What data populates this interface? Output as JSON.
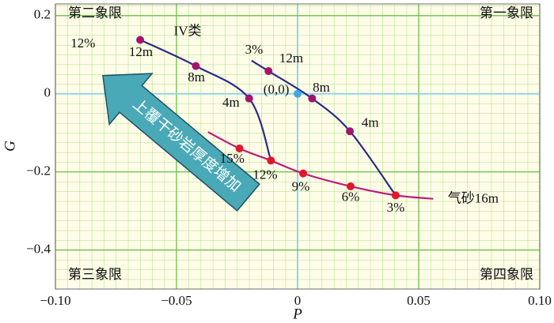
{
  "chart_data": {
    "type": "line",
    "xlabel": "P",
    "ylabel": "G",
    "xlim": [
      -0.1,
      0.1
    ],
    "ylim": [
      -0.5,
      0.23
    ],
    "xticks": [
      {
        "value": -0.1,
        "label": "−0.10"
      },
      {
        "value": -0.05,
        "label": "−0.05"
      },
      0,
      {
        "value": 0.05,
        "label": "0.05"
      },
      {
        "value": 0.1,
        "label": "0.10"
      }
    ],
    "yticks": [
      {
        "value": 0.2,
        "label": "0.2"
      },
      0,
      {
        "value": -0.2,
        "label": "−0.2"
      },
      {
        "value": -0.4,
        "label": "−0.4"
      }
    ],
    "grid": true,
    "series": [
      {
        "color": "#2b2a8a",
        "x": [
          -0.065,
          -0.042,
          -0.02,
          -0.011
        ],
        "y": [
          0.138,
          0.071,
          -0.012,
          -0.171
        ]
      },
      {
        "color": "#2b2a8a",
        "x": [
          -0.019,
          -0.012,
          0.006,
          0.0216,
          0.0405
        ],
        "y": [
          0.085,
          0.058,
          -0.012,
          -0.096,
          -0.26
        ]
      },
      {
        "color": "#c0187e",
        "x": [
          -0.037,
          -0.024,
          -0.011,
          0.0023,
          0.0219,
          0.0405,
          0.056
        ],
        "y": [
          -0.098,
          -0.14,
          -0.171,
          -0.204,
          -0.237,
          -0.26,
          -0.269
        ]
      }
    ],
    "points": [
      {
        "color": "#a3146c",
        "x": [
          -0.065,
          -0.042,
          -0.02,
          -0.012,
          0.006,
          0.0216
        ],
        "y": [
          0.138,
          0.071,
          -0.012,
          0.058,
          -0.012,
          -0.096
        ]
      },
      {
        "color": "#e3162c",
        "x": [
          -0.024,
          -0.011,
          0.0023,
          0.0219,
          0.0405
        ],
        "y": [
          -0.14,
          -0.171,
          -0.204,
          -0.237,
          -0.26
        ]
      },
      {
        "color": "#3fa9e0",
        "x": [
          0
        ],
        "y": [
          0
        ]
      }
    ],
    "annotations": [
      {
        "text": "IV类",
        "x": -0.0454,
        "y": 0.158
      },
      {
        "text": "12%",
        "x": -0.0886,
        "y": 0.127
      },
      {
        "text": "12m",
        "x": -0.0647,
        "y": 0.104
      },
      {
        "text": "8m",
        "x": -0.0418,
        "y": 0.04
      },
      {
        "text": "4m",
        "x": -0.0275,
        "y": -0.025
      },
      {
        "text": "3%",
        "x": -0.018,
        "y": 0.11
      },
      {
        "text": "12m",
        "x": -0.0026,
        "y": 0.088
      },
      {
        "text": "(0,0)",
        "x": -0.0088,
        "y": 0.008
      },
      {
        "text": "8m",
        "x": 0.0098,
        "y": 0.013
      },
      {
        "text": "4m",
        "x": 0.03,
        "y": -0.077
      },
      {
        "text": "15%",
        "x": -0.027,
        "y": -0.169
      },
      {
        "text": "12%",
        "x": -0.0134,
        "y": -0.21
      },
      {
        "text": "9%",
        "x": 0.0013,
        "y": -0.24
      },
      {
        "text": "6%",
        "x": 0.0219,
        "y": -0.267
      },
      {
        "text": "3%",
        "x": 0.0405,
        "y": -0.294
      },
      {
        "text": "气砂16m",
        "x": 0.0725,
        "y": -0.271
      }
    ],
    "quadrant_labels": {
      "top_left": "第二象限",
      "top_right": "第一象限",
      "bottom_left": "第三象限",
      "bottom_right": "第四象限"
    },
    "arrow_text": "上覆干砂岩厚度增加"
  }
}
